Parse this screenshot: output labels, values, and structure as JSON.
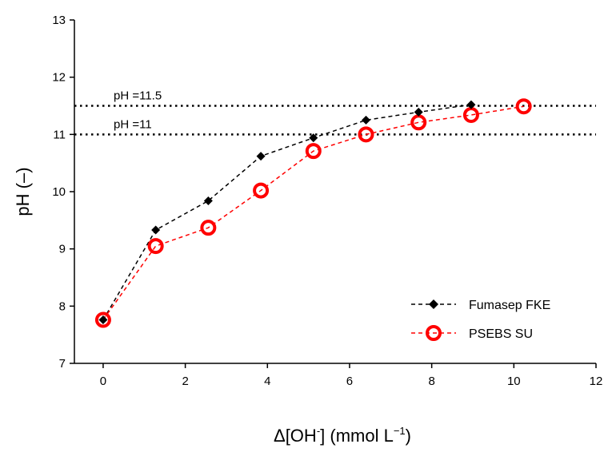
{
  "chart_data": {
    "type": "line",
    "xlabel_parts": [
      "Δ[OH",
      "-",
      "] (mmol L",
      "−1",
      ")"
    ],
    "ylabel": "pH (–)",
    "xlim": [
      -0.7,
      12
    ],
    "ylim": [
      7,
      13
    ],
    "xticks": [
      0,
      2,
      4,
      6,
      8,
      10,
      12
    ],
    "yticks": [
      7,
      8,
      9,
      10,
      11,
      12,
      13
    ],
    "grid": false,
    "legend_position": "bottom-right",
    "reference_lines": [
      {
        "y": 11.5,
        "label": "pH =11.5"
      },
      {
        "y": 11,
        "label": "pH =11"
      }
    ],
    "series": [
      {
        "name": "Fumasep FKE",
        "marker": "diamond",
        "color": "#000000",
        "x": [
          0,
          1.28,
          2.56,
          3.84,
          5.12,
          6.4,
          7.68,
          8.96
        ],
        "y": [
          7.76,
          9.33,
          9.84,
          10.62,
          10.94,
          11.25,
          11.39,
          11.52
        ]
      },
      {
        "name": "PSEBS SU",
        "marker": "open-circle",
        "color": "#ff0000",
        "x": [
          0,
          1.28,
          2.56,
          3.84,
          5.12,
          6.4,
          7.68,
          8.96,
          10.24
        ],
        "y": [
          7.76,
          9.05,
          9.37,
          10.02,
          10.71,
          11.0,
          11.21,
          11.34,
          11.49
        ]
      }
    ]
  }
}
